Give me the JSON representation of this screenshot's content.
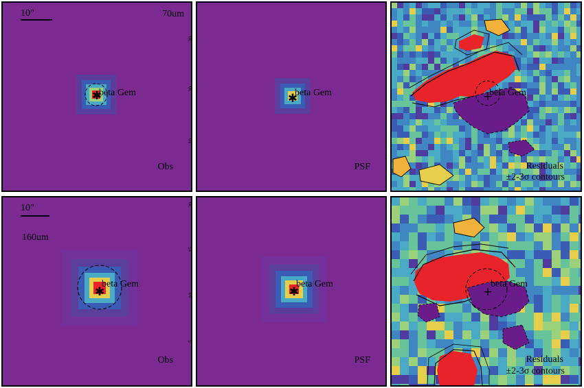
{
  "colors": {
    "background": "#7a2a91",
    "frame": "#000000",
    "palette": [
      "#6a1d8a",
      "#7b2b93",
      "#4f3c9e",
      "#3a5cb4",
      "#3f86c3",
      "#4aa9c4",
      "#67c39a",
      "#9bd17a",
      "#e6cd4a",
      "#f0b23a",
      "#ec6a2e",
      "#e8242a"
    ]
  },
  "panels": [
    {
      "id": "70-obs",
      "source_label": "beta Gem",
      "wave_label": "70um",
      "scale_label": "10\"",
      "corner_label": "Obs",
      "kind": "obs",
      "marker": "star-icon"
    },
    {
      "id": "70-psf",
      "source_label": "beta Gem",
      "corner_label": "PSF",
      "kind": "psf",
      "marker": "star-icon",
      "axis_ticks": [
        "30",
        "20",
        "10"
      ]
    },
    {
      "id": "70-res",
      "source_label": "beta Gem",
      "corner_label_1": "Residuals",
      "corner_label_2": "±2-3σ contours",
      "kind": "residual",
      "marker": "plus-icon"
    },
    {
      "id": "160-obs",
      "source_label": "beta Gem",
      "wave_label": "160um",
      "scale_label": "10\"",
      "corner_label": "Obs",
      "kind": "obs",
      "marker": "star-icon"
    },
    {
      "id": "160-psf",
      "source_label": "beta Gem",
      "corner_label": "PSF",
      "kind": "psf",
      "marker": "star-icon",
      "axis_ticks": [
        "20",
        "15",
        "10",
        "5"
      ]
    },
    {
      "id": "160-res",
      "source_label": "beta Gem",
      "corner_label_1": "Residuals",
      "corner_label_2": "±2-3σ contours",
      "kind": "residual",
      "marker": "plus-icon"
    }
  ]
}
